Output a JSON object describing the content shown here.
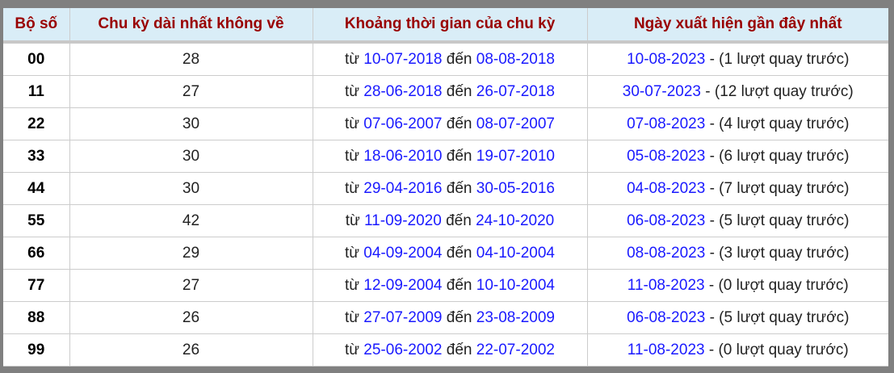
{
  "headers": [
    "Bộ số",
    "Chu kỳ dài nhất không về",
    "Khoảng thời gian của chu kỳ",
    "Ngày xuất hiện gần đây nhất"
  ],
  "labels": {
    "from": "từ",
    "to": "đến",
    "sep": "-"
  },
  "colors": {
    "header_bg": "#d9edf7",
    "header_text": "#990000",
    "link": "#1a1aff",
    "frame": "#808080"
  },
  "rows": [
    {
      "so": "00",
      "cycle": "28",
      "start": "10-07-2018",
      "end": "08-08-2018",
      "last": "10-08-2023",
      "note": "(1 lượt quay trước)"
    },
    {
      "so": "11",
      "cycle": "27",
      "start": "28-06-2018",
      "end": "26-07-2018",
      "last": "30-07-2023",
      "note": "(12 lượt quay trước)"
    },
    {
      "so": "22",
      "cycle": "30",
      "start": "07-06-2007",
      "end": "08-07-2007",
      "last": "07-08-2023",
      "note": "(4 lượt quay trước)"
    },
    {
      "so": "33",
      "cycle": "30",
      "start": "18-06-2010",
      "end": "19-07-2010",
      "last": "05-08-2023",
      "note": "(6 lượt quay trước)"
    },
    {
      "so": "44",
      "cycle": "30",
      "start": "29-04-2016",
      "end": "30-05-2016",
      "last": "04-08-2023",
      "note": "(7 lượt quay trước)"
    },
    {
      "so": "55",
      "cycle": "42",
      "start": "11-09-2020",
      "end": "24-10-2020",
      "last": "06-08-2023",
      "note": "(5 lượt quay trước)"
    },
    {
      "so": "66",
      "cycle": "29",
      "start": "04-09-2004",
      "end": "04-10-2004",
      "last": "08-08-2023",
      "note": "(3 lượt quay trước)"
    },
    {
      "so": "77",
      "cycle": "27",
      "start": "12-09-2004",
      "end": "10-10-2004",
      "last": "11-08-2023",
      "note": "(0 lượt quay trước)"
    },
    {
      "so": "88",
      "cycle": "26",
      "start": "27-07-2009",
      "end": "23-08-2009",
      "last": "06-08-2023",
      "note": "(5 lượt quay trước)"
    },
    {
      "so": "99",
      "cycle": "26",
      "start": "25-06-2002",
      "end": "22-07-2002",
      "last": "11-08-2023",
      "note": "(0 lượt quay trước)"
    }
  ]
}
